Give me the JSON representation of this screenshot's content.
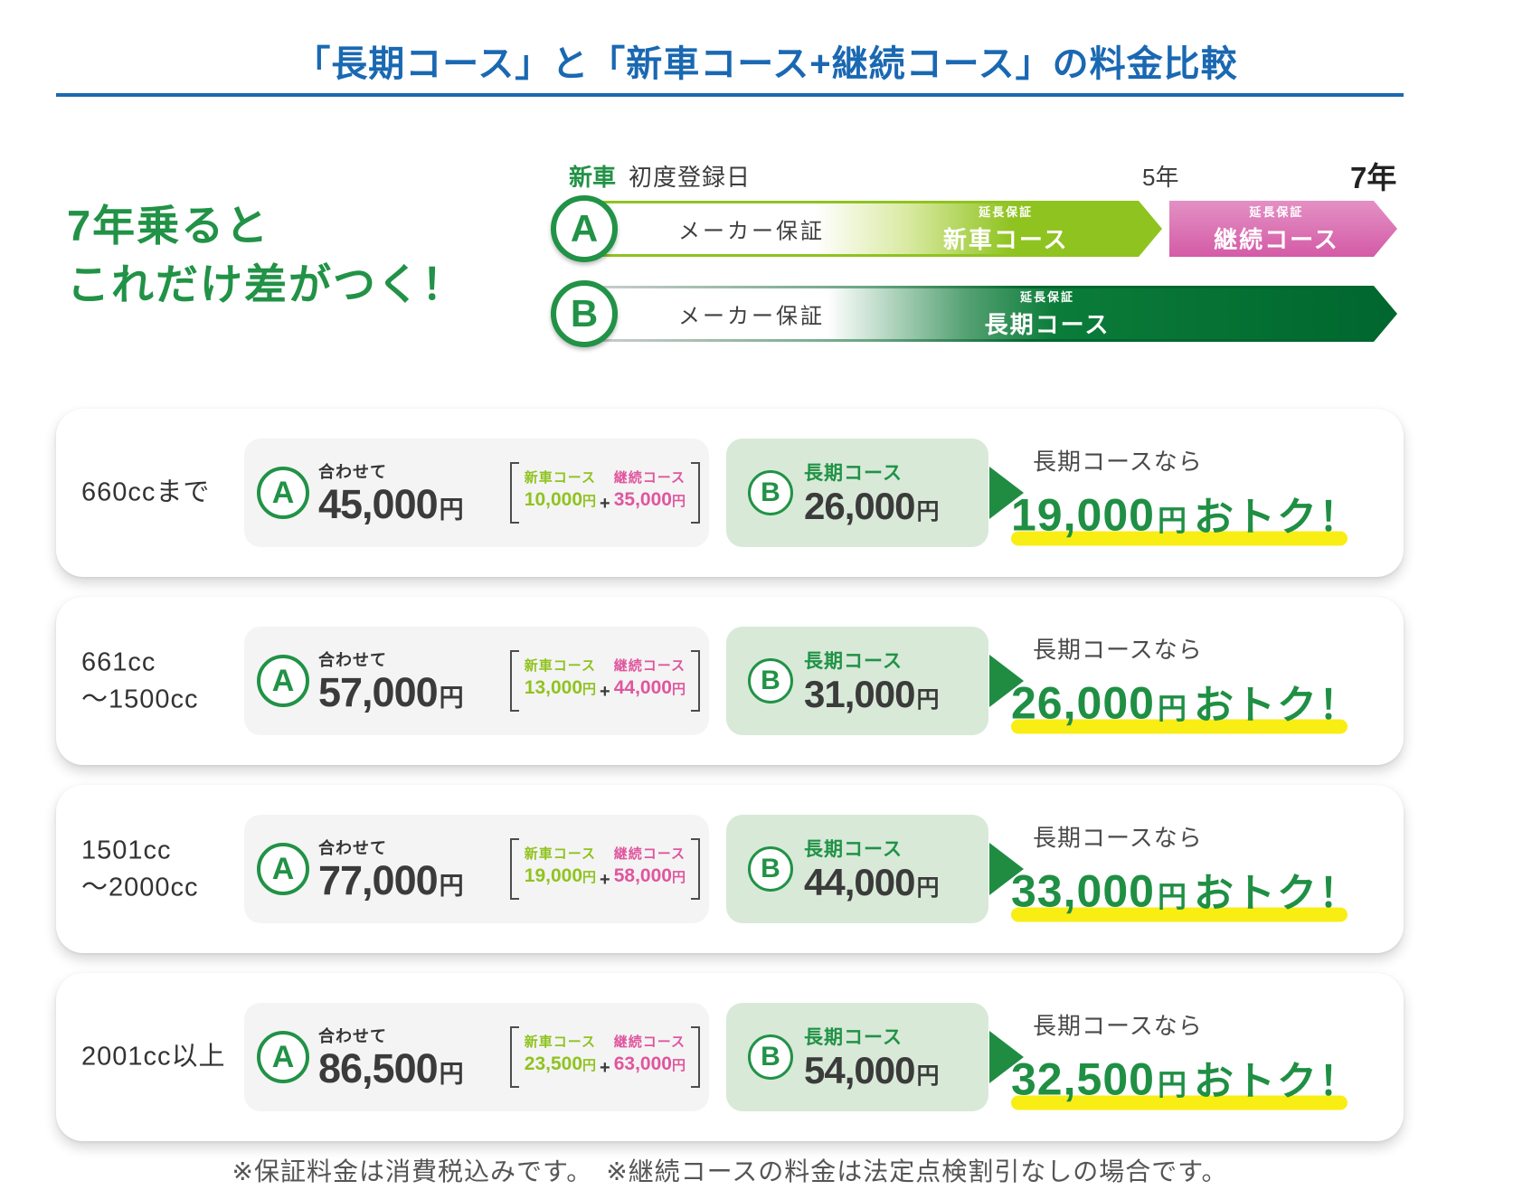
{
  "title": {
    "text": "「長期コース」と「新車コース+継続コース」の料金比較"
  },
  "headline": {
    "line1": "7年乗ると",
    "line2": "これだけ差がつく！"
  },
  "timeline": {
    "start_new": "新車",
    "start_reg": "初度登録日",
    "year5": "5年",
    "year7": "7年",
    "maker": "メーカー保証",
    "ext_tag": "延長保証",
    "course_new": "新車コース",
    "course_keizoku": "継続コース",
    "course_choki": "長期コース"
  },
  "labels": {
    "badge_a": "A",
    "badge_b": "B",
    "awasete": "合わせて",
    "shinsha": "新車コース",
    "keizoku": "継続コース",
    "choki": "長期コース",
    "nara": "長期コースなら",
    "otoku": "おトク！",
    "yen": "円",
    "plus": "+"
  },
  "rows": [
    {
      "engine_line1": "660ccまで",
      "engine_line2": "",
      "a_total": "45,000",
      "shinsha_price": "10,000",
      "keizoku_price": "35,000",
      "b_price": "26,000",
      "save": "19,000"
    },
    {
      "engine_line1": "661cc",
      "engine_line2": "～1500cc",
      "a_total": "57,000",
      "shinsha_price": "13,000",
      "keizoku_price": "44,000",
      "b_price": "31,000",
      "save": "26,000"
    },
    {
      "engine_line1": "1501cc",
      "engine_line2": "～2000cc",
      "a_total": "77,000",
      "shinsha_price": "19,000",
      "keizoku_price": "58,000",
      "b_price": "44,000",
      "save": "33,000"
    },
    {
      "engine_line1": "2001cc以上",
      "engine_line2": "",
      "a_total": "86,500",
      "shinsha_price": "23,500",
      "keizoku_price": "63,000",
      "b_price": "54,000",
      "save": "32,500"
    }
  ],
  "footer": {
    "note": "※保証料金は消費税込みです。　※継続コースの料金は法定点検割引なしの場合です。"
  },
  "colors": {
    "title_blue": "#1a68b2",
    "main_green": "#219246",
    "yellow_green": "#8fc31f",
    "pink": "#e0569e",
    "dark_green_bar": "#00672e",
    "light_green_box": "#d8e9d8",
    "gray_box": "#f4f4f4",
    "yellow_highlight": "#f8ee14",
    "number_dark": "#3b3b3b"
  }
}
